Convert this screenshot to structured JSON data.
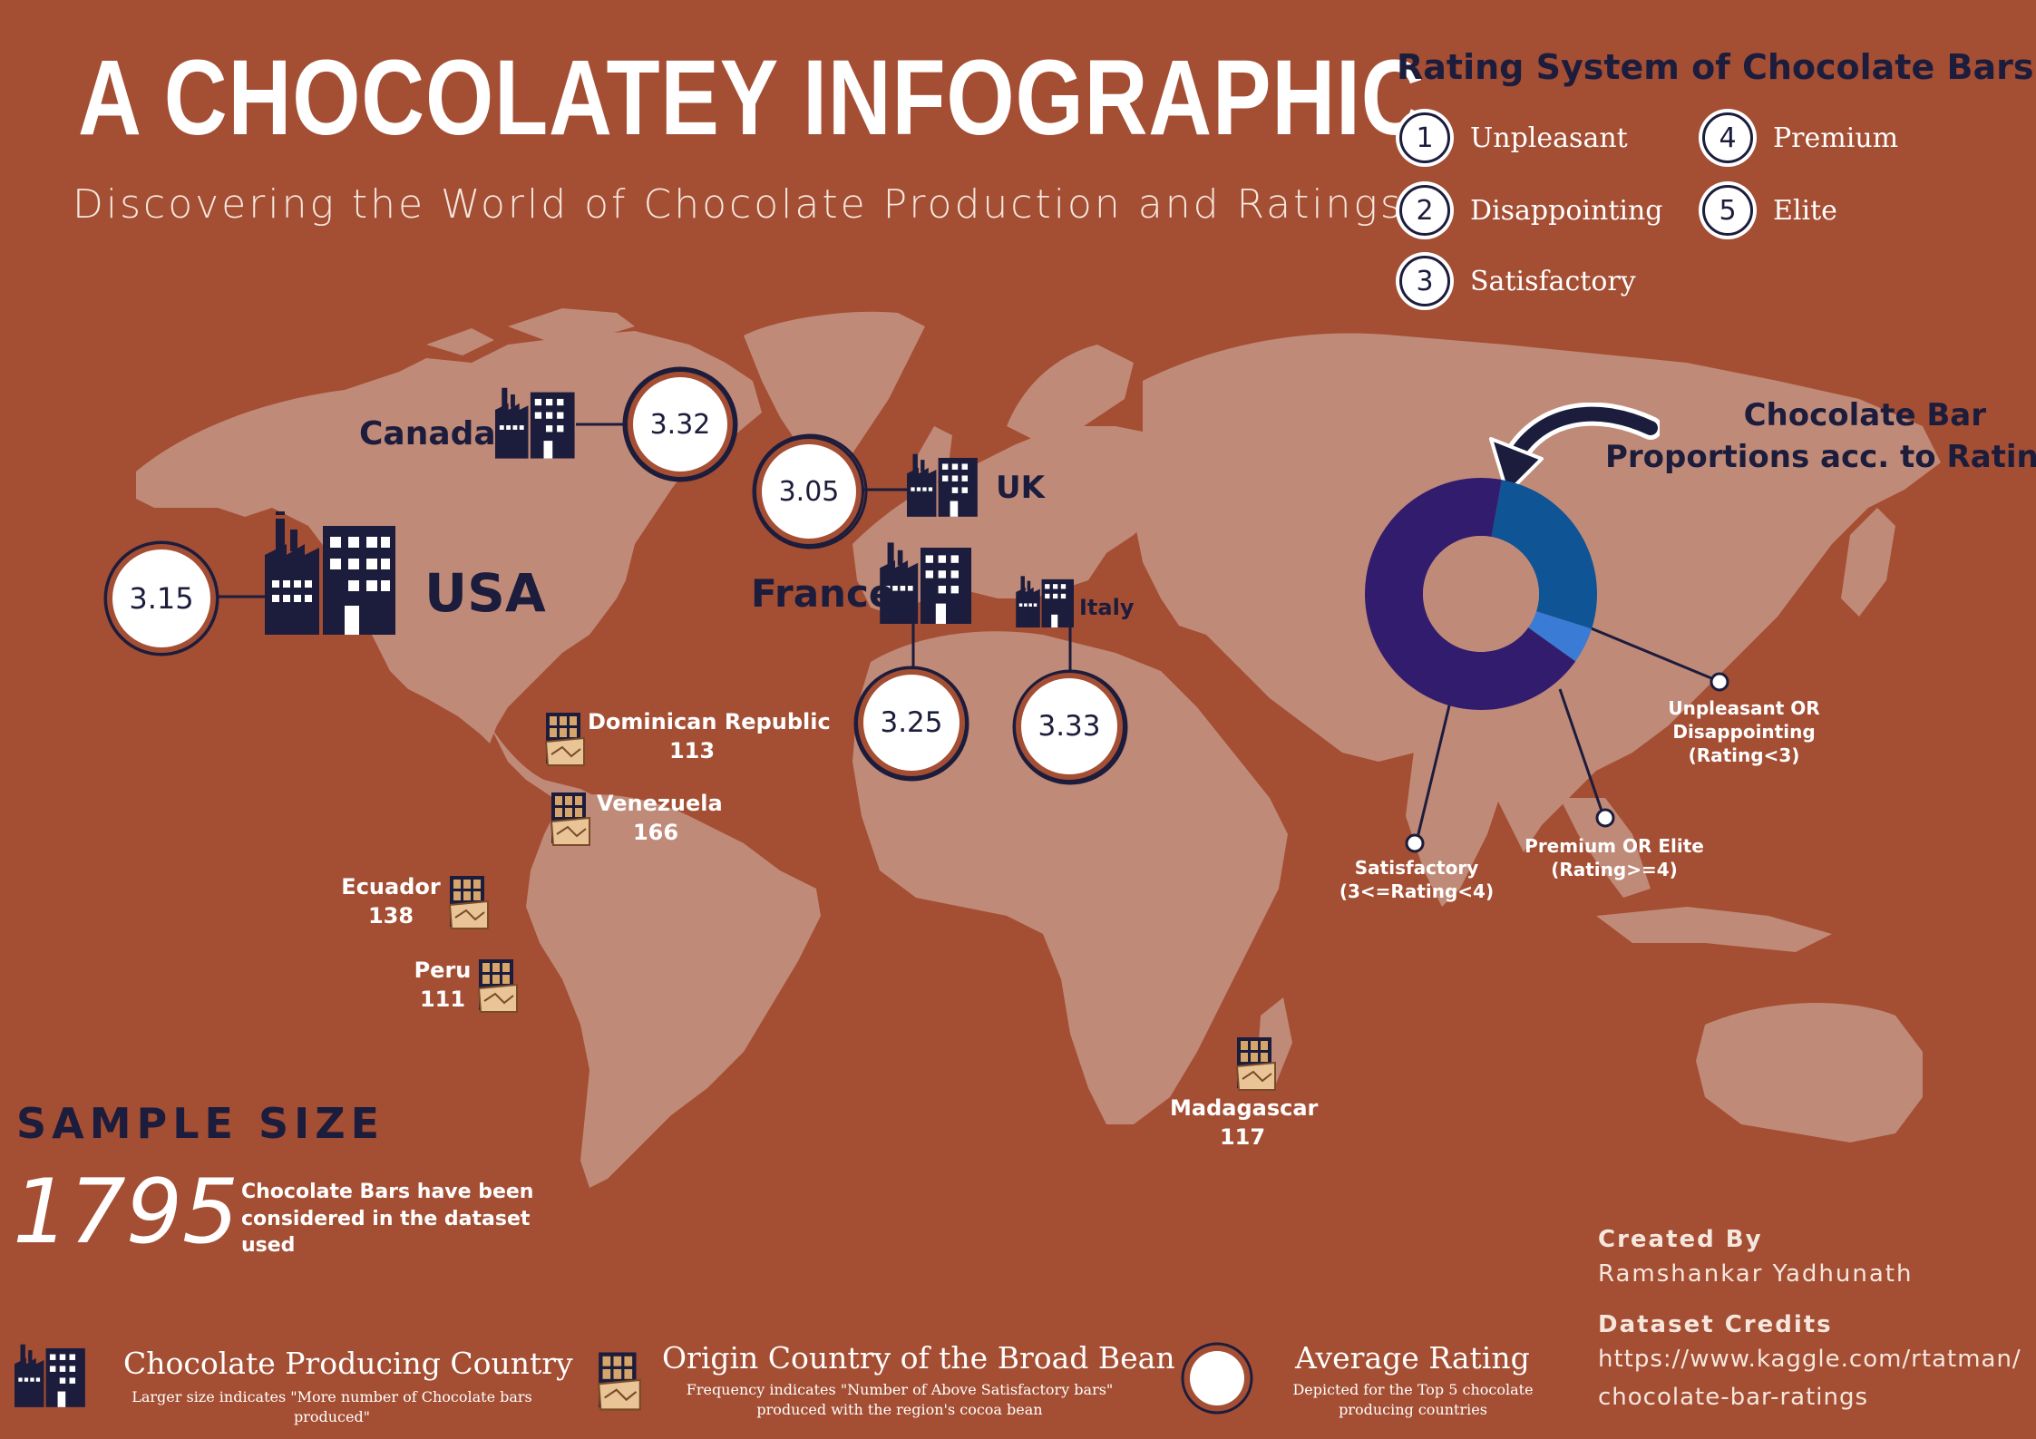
{
  "header": {
    "title": "A CHOCOLATEY INFOGRAPHIC",
    "subtitle": "Discovering the World of Chocolate Production and Ratings"
  },
  "rating_system": {
    "title": "Rating System of Chocolate Bars",
    "items": [
      {
        "num": "1",
        "label": "Unpleasant"
      },
      {
        "num": "2",
        "label": "Disappointing"
      },
      {
        "num": "3",
        "label": "Satisfactory"
      },
      {
        "num": "4",
        "label": "Premium"
      },
      {
        "num": "5",
        "label": "Elite"
      }
    ]
  },
  "producers": [
    {
      "country": "USA",
      "rating": "3.15"
    },
    {
      "country": "Canada",
      "rating": "3.32"
    },
    {
      "country": "UK",
      "rating": "3.05"
    },
    {
      "country": "France",
      "rating": "3.25"
    },
    {
      "country": "Italy",
      "rating": "3.33"
    }
  ],
  "bean_origins": [
    {
      "country": "Dominican Republic",
      "count": "113"
    },
    {
      "country": "Venezuela",
      "count": "166"
    },
    {
      "country": "Ecuador",
      "count": "138"
    },
    {
      "country": "Peru",
      "count": "111"
    },
    {
      "country": "Madagascar",
      "count": "117"
    }
  ],
  "proportions": {
    "title_line1": "Chocolate Bar",
    "title_line2": "Proportions acc. to Rating",
    "segments": [
      {
        "line1": "Satisfactory",
        "line2": "(3<=Rating<4)",
        "share": 0.68,
        "color": "#321c6e"
      },
      {
        "line1": "Unpleasant OR",
        "line2": "Disappointing",
        "line3": "(Rating<3)",
        "share": 0.27,
        "color": "#0f5495"
      },
      {
        "line1": "Premium OR Elite",
        "line2": "(Rating>=4)",
        "share": 0.05,
        "color": "#3a7bd5"
      }
    ]
  },
  "sample": {
    "title": "SAMPLE SIZE",
    "number": "1795",
    "description": "Chocolate Bars have been considered in the dataset used"
  },
  "credits": {
    "created_label": "Created By",
    "author": "Ramshankar Yadhunath",
    "dataset_label": "Dataset Credits",
    "url_line1": "https://www.kaggle.com/rtatman/",
    "url_line2": "chocolate-bar-ratings"
  },
  "legend": {
    "producing": {
      "title": "Chocolate Producing Country",
      "desc": "Larger size indicates \"More number of Chocolate bars produced\""
    },
    "origin": {
      "title": "Origin Country of the Broad Bean",
      "desc": "Frequency indicates \"Number of Above Satisfactory bars\" produced with the region's cocoa bean"
    },
    "rating": {
      "title": "Average Rating",
      "desc": "Depicted for the Top 5 chocolate producing countries"
    }
  },
  "colors": {
    "background": "#a44e33",
    "land": "#c08a78",
    "navy": "#1c1c3c",
    "bar_tan": "#d6a56b"
  },
  "icons": [
    "factory-icon",
    "chocolate-bar-icon",
    "rating-ring-icon",
    "curved-arrow-icon"
  ]
}
